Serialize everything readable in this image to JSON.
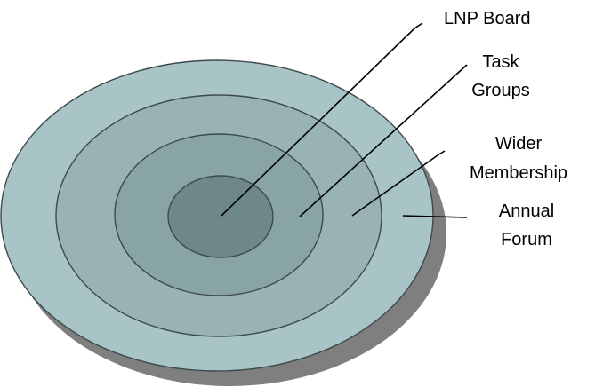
{
  "diagram": {
    "type": "nested-ellipses",
    "layers": [
      {
        "label_lines": [
          "LNP Board"
        ],
        "fill": "#6e8788"
      },
      {
        "label_lines": [
          "Task",
          "Groups"
        ],
        "fill": "#89a4a5"
      },
      {
        "label_lines": [
          "Wider",
          "Membership"
        ],
        "fill": "#99b3b5"
      },
      {
        "label_lines": [
          "Annual",
          "Forum"
        ],
        "fill": "#a8c4c6"
      }
    ],
    "shadow_color": "#7f7f7f",
    "outline_color": "#3d4a4c"
  }
}
